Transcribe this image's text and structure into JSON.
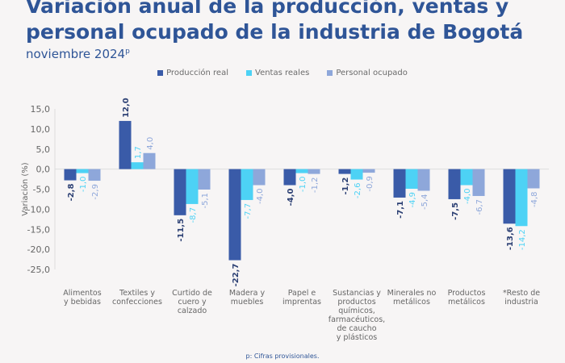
{
  "title": "Variación anual de la producción, ventas y personal ocupado de la industria de Bogotá",
  "subtitle": "noviembre 2024",
  "subtitle_sup": "p",
  "footnote": "p: Cifras provisionales.",
  "chart_data": {
    "type": "bar",
    "ylabel": "Variación (%)",
    "ylim": [
      -25,
      15
    ],
    "yticks": [
      "15,0",
      "10,0",
      "5,0",
      "0,0",
      "-5,0",
      "-10,0",
      "-15,0",
      "-20,0",
      "-25,0"
    ],
    "ytick_values": [
      15,
      10,
      5,
      0,
      -5,
      -10,
      -15,
      -20,
      -25
    ],
    "legend": "top",
    "categories": [
      [
        "Alimentos",
        "y bebidas"
      ],
      [
        "Textiles y",
        "confecciones"
      ],
      [
        "Curtido de",
        "cuero y",
        "calzado"
      ],
      [
        "Madera y",
        "muebles"
      ],
      [
        "Papel e",
        "imprentas"
      ],
      [
        "Sustancias y",
        "productos",
        "químicos,",
        "farmacéuticos,",
        "de caucho",
        "y plásticos"
      ],
      [
        "Minerales no",
        "metálicos"
      ],
      [
        "Productos",
        "metálicos"
      ],
      [
        "*Resto de",
        "industria"
      ]
    ],
    "series": [
      {
        "name": "Producción real",
        "color": "#3a5ba8",
        "values": [
          -2.8,
          12.0,
          -11.5,
          -22.7,
          -4.0,
          -1.2,
          -7.1,
          -7.5,
          -13.6
        ]
      },
      {
        "name": "Ventas reales",
        "color": "#4dd2f5",
        "values": [
          -1.0,
          1.7,
          -8.7,
          -7.7,
          -1.0,
          -2.6,
          -4.9,
          -4.0,
          -14.2
        ]
      },
      {
        "name": "Personal ocupado",
        "color": "#8ea7da",
        "values": [
          -2.9,
          4.0,
          -5.1,
          -4.0,
          -1.2,
          -0.9,
          -5.4,
          -6.7,
          -4.8
        ]
      }
    ]
  }
}
